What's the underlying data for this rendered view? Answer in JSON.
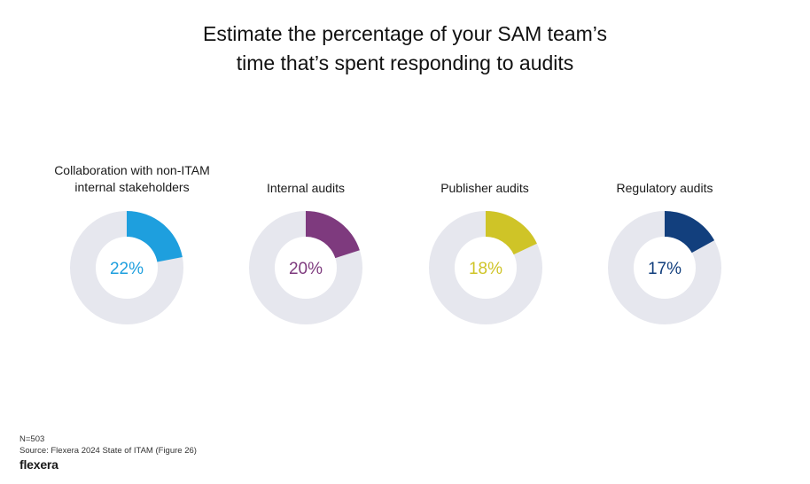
{
  "title_line1": "Estimate the percentage of your SAM team’s",
  "title_line2": "time that’s spent responding to audits",
  "chart_data": {
    "type": "donut",
    "title": "Estimate the percentage of your SAM team’s time that’s spent responding to audits",
    "items": [
      {
        "label_line1": "Collaboration with non-ITAM",
        "label_line2": "internal stakeholders",
        "value": 22,
        "value_label": "22%",
        "color": "#1e9fde"
      },
      {
        "label_line1": "Internal audits",
        "label_line2": "",
        "value": 20,
        "value_label": "20%",
        "color": "#7e3a7e"
      },
      {
        "label_line1": "Publisher audits",
        "label_line2": "",
        "value": 18,
        "value_label": "18%",
        "color": "#cfc427"
      },
      {
        "label_line1": "Regulatory audits",
        "label_line2": "",
        "value": 17,
        "value_label": "17%",
        "color": "#123f7d"
      }
    ],
    "track_color": "#e6e7ee"
  },
  "footer": {
    "n": "N=503",
    "source": "Source: Flexera 2024 State of ITAM (Figure 26)",
    "logo": "flexera"
  }
}
